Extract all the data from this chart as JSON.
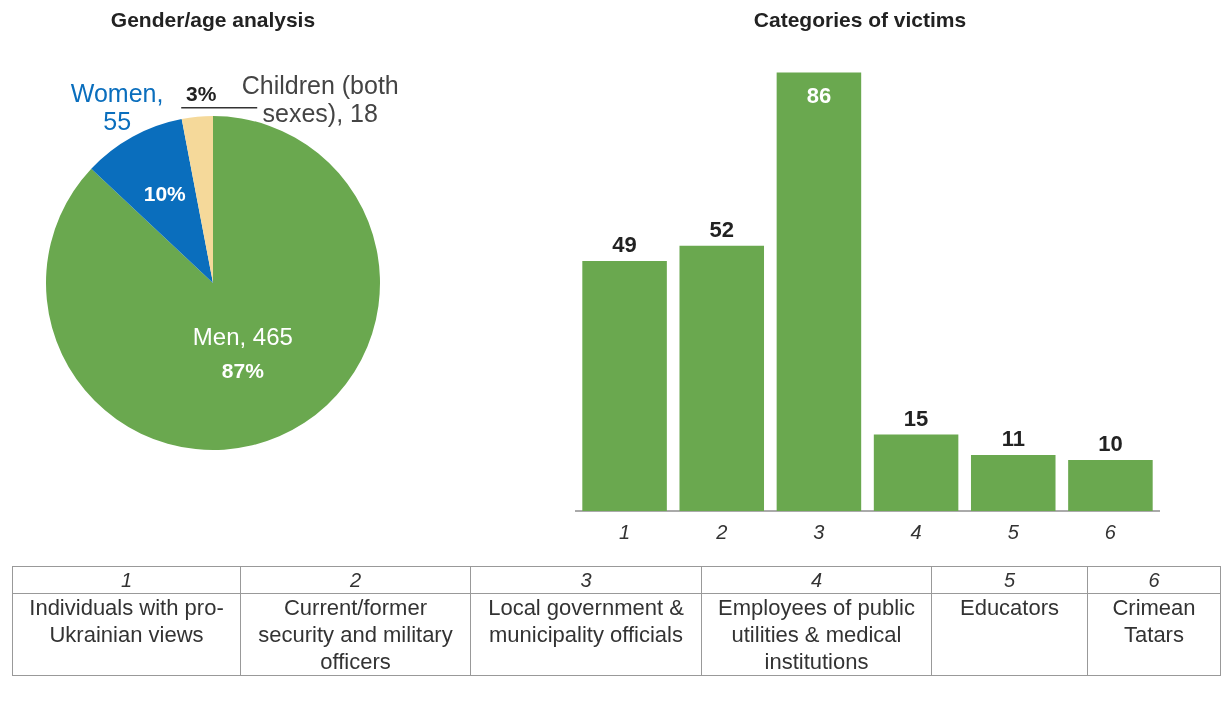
{
  "chart_data": [
    {
      "type": "pie",
      "title": "Gender/age analysis",
      "categories": [
        "Men, 465",
        "Women, 55",
        "Children (both sexes), 18"
      ],
      "values": [
        87,
        10,
        3
      ],
      "colors": [
        "#6aa84f",
        "#0a6ebd",
        "#f5d99a"
      ],
      "data_labels": true,
      "value_labels": [
        "87%",
        "10%",
        "3%"
      ],
      "legend": false
    },
    {
      "type": "bar",
      "title": "Categories of victims",
      "categories": [
        "1",
        "2",
        "3",
        "4",
        "5",
        "6"
      ],
      "values": [
        49,
        52,
        86,
        15,
        11,
        10
      ],
      "color": "#6aa84f",
      "data_labels": true,
      "grid": false,
      "legend": false,
      "annotations": [
        "Individuals with pro-Ukrainian views",
        "Current/former security and military officers",
        "Local government & municipality officials",
        "Employees of public utilities & medical institutions",
        "Educators",
        "Crimean Tatars"
      ]
    }
  ]
}
